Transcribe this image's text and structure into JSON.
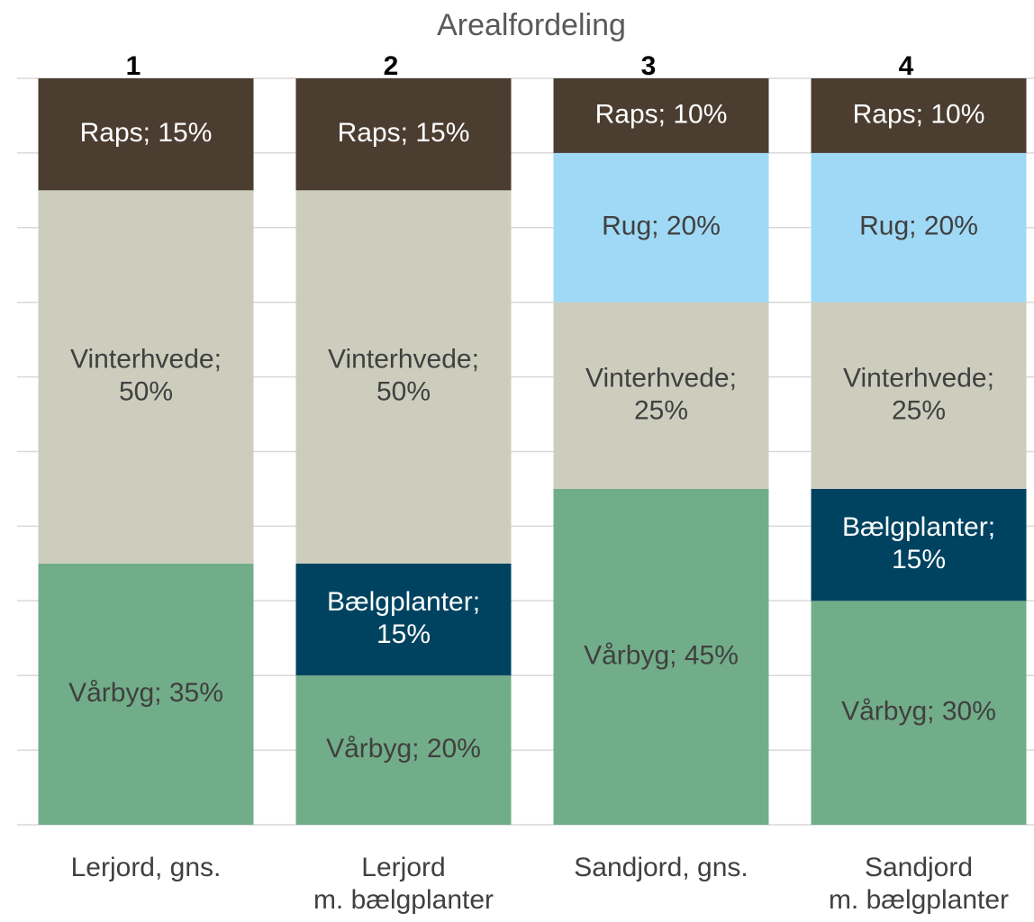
{
  "chart_data": {
    "type": "stacked_bar",
    "title": "Arealfordeling",
    "annotations": [
      "1",
      "2",
      "3",
      "4"
    ],
    "categories": [
      "Lerjord, gns.",
      "Lerjord\nm. bælgplanter",
      "Sandjord, gns.",
      "Sandjord\nm. bælgplanter"
    ],
    "series": [
      {
        "name": "Vårbyg",
        "color": "#72ad89",
        "values": [
          35,
          20,
          45,
          30
        ],
        "value_labels": [
          "Vårbyg; 35%",
          "Vårbyg; 20%",
          "Vårbyg; 45%",
          "Vårbyg; 30%"
        ]
      },
      {
        "name": "Bælgplanter",
        "color": "#004360",
        "values": [
          null,
          15,
          null,
          15
        ],
        "value_labels": [
          null,
          "Bælgplanter;\n15%",
          null,
          "Bælgplanter;\n15%"
        ]
      },
      {
        "name": "Vinterhvede",
        "color": "#cdcdbe",
        "values": [
          50,
          50,
          25,
          25
        ],
        "value_labels": [
          "Vinterhvede;\n50%",
          "Vinterhvede;\n50%",
          "Vinterhvede;\n25%",
          "Vinterhvede;\n25%"
        ]
      },
      {
        "name": "Rug",
        "color": "#9fd9f5",
        "values": [
          null,
          null,
          20,
          20
        ],
        "value_labels": [
          null,
          null,
          "Rug; 20%",
          "Rug; 20%"
        ]
      },
      {
        "name": "Raps",
        "color": "#4b3d30",
        "values": [
          15,
          15,
          10,
          10
        ],
        "value_labels": [
          "Raps; 15%",
          "Raps; 15%",
          "Raps; 10%",
          "Raps; 10%"
        ]
      }
    ],
    "ylim": [
      0,
      100
    ],
    "yticks": [
      0,
      10,
      20,
      30,
      40,
      50,
      60,
      70,
      80,
      90,
      100
    ],
    "grid": true
  }
}
